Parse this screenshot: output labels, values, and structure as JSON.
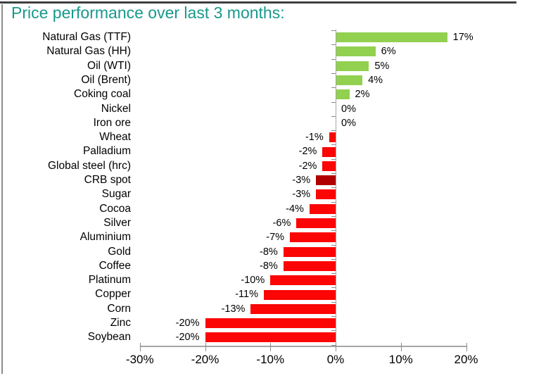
{
  "header": {
    "title": "Price performance over last 3 months:"
  },
  "colors": {
    "title": "#18998b",
    "positive_bar": "#92d050",
    "negative_bar": "#fb0505",
    "highlight_bar": "#b00000",
    "axis": "#a6a6a6",
    "tick": "#8c8c8c",
    "top_rule": "#3f3f3f",
    "left_rule": "#8c8c8c",
    "text": "#000000"
  },
  "chart_data": {
    "type": "bar",
    "orientation": "horizontal",
    "title": "Price performance over last 3 months:",
    "xlim": [
      -30,
      20
    ],
    "x_tick_values": [
      -30,
      -20,
      -10,
      0,
      10,
      20
    ],
    "x_tick_labels": [
      "-30%",
      "-20%",
      "-10%",
      "0%",
      "10%",
      "20%"
    ],
    "grid": false,
    "legend": false,
    "value_unit": "%",
    "highlight_category": "CRB spot",
    "bars": [
      {
        "category": "Natural Gas (TTF)",
        "value": 17,
        "label": "17%",
        "role": "positive"
      },
      {
        "category": "Natural Gas (HH)",
        "value": 6,
        "label": "6%",
        "role": "positive"
      },
      {
        "category": "Oil (WTI)",
        "value": 5,
        "label": "5%",
        "role": "positive"
      },
      {
        "category": "Oil (Brent)",
        "value": 4,
        "label": "4%",
        "role": "positive"
      },
      {
        "category": "Coking coal",
        "value": 2,
        "label": "2%",
        "role": "positive"
      },
      {
        "category": "Nickel",
        "value": 0,
        "label": "0%",
        "role": "zero"
      },
      {
        "category": "Iron ore",
        "value": 0,
        "label": "0%",
        "role": "zero"
      },
      {
        "category": "Wheat",
        "value": -1,
        "label": "-1%",
        "role": "negative"
      },
      {
        "category": "Palladium",
        "value": -2,
        "label": "-2%",
        "role": "negative"
      },
      {
        "category": "Global steel (hrc)",
        "value": -2,
        "label": "-2%",
        "role": "negative"
      },
      {
        "category": "CRB spot",
        "value": -3,
        "label": "-3%",
        "role": "highlight"
      },
      {
        "category": "Sugar",
        "value": -3,
        "label": "-3%",
        "role": "negative"
      },
      {
        "category": "Cocoa",
        "value": -4,
        "label": "-4%",
        "role": "negative"
      },
      {
        "category": "Silver",
        "value": -6,
        "label": "-6%",
        "role": "negative"
      },
      {
        "category": "Aluminium",
        "value": -7,
        "label": "-7%",
        "role": "negative"
      },
      {
        "category": "Gold",
        "value": -8,
        "label": "-8%",
        "role": "negative"
      },
      {
        "category": "Coffee",
        "value": -8,
        "label": "-8%",
        "role": "negative"
      },
      {
        "category": "Platinum",
        "value": -10,
        "label": "-10%",
        "role": "negative"
      },
      {
        "category": "Copper",
        "value": -11,
        "label": "-11%",
        "role": "negative"
      },
      {
        "category": "Corn",
        "value": -13,
        "label": "-13%",
        "role": "negative"
      },
      {
        "category": "Zinc",
        "value": -20,
        "label": "-20%",
        "role": "negative"
      },
      {
        "category": "Soybean",
        "value": -20,
        "label": "-20%",
        "role": "negative"
      }
    ]
  }
}
